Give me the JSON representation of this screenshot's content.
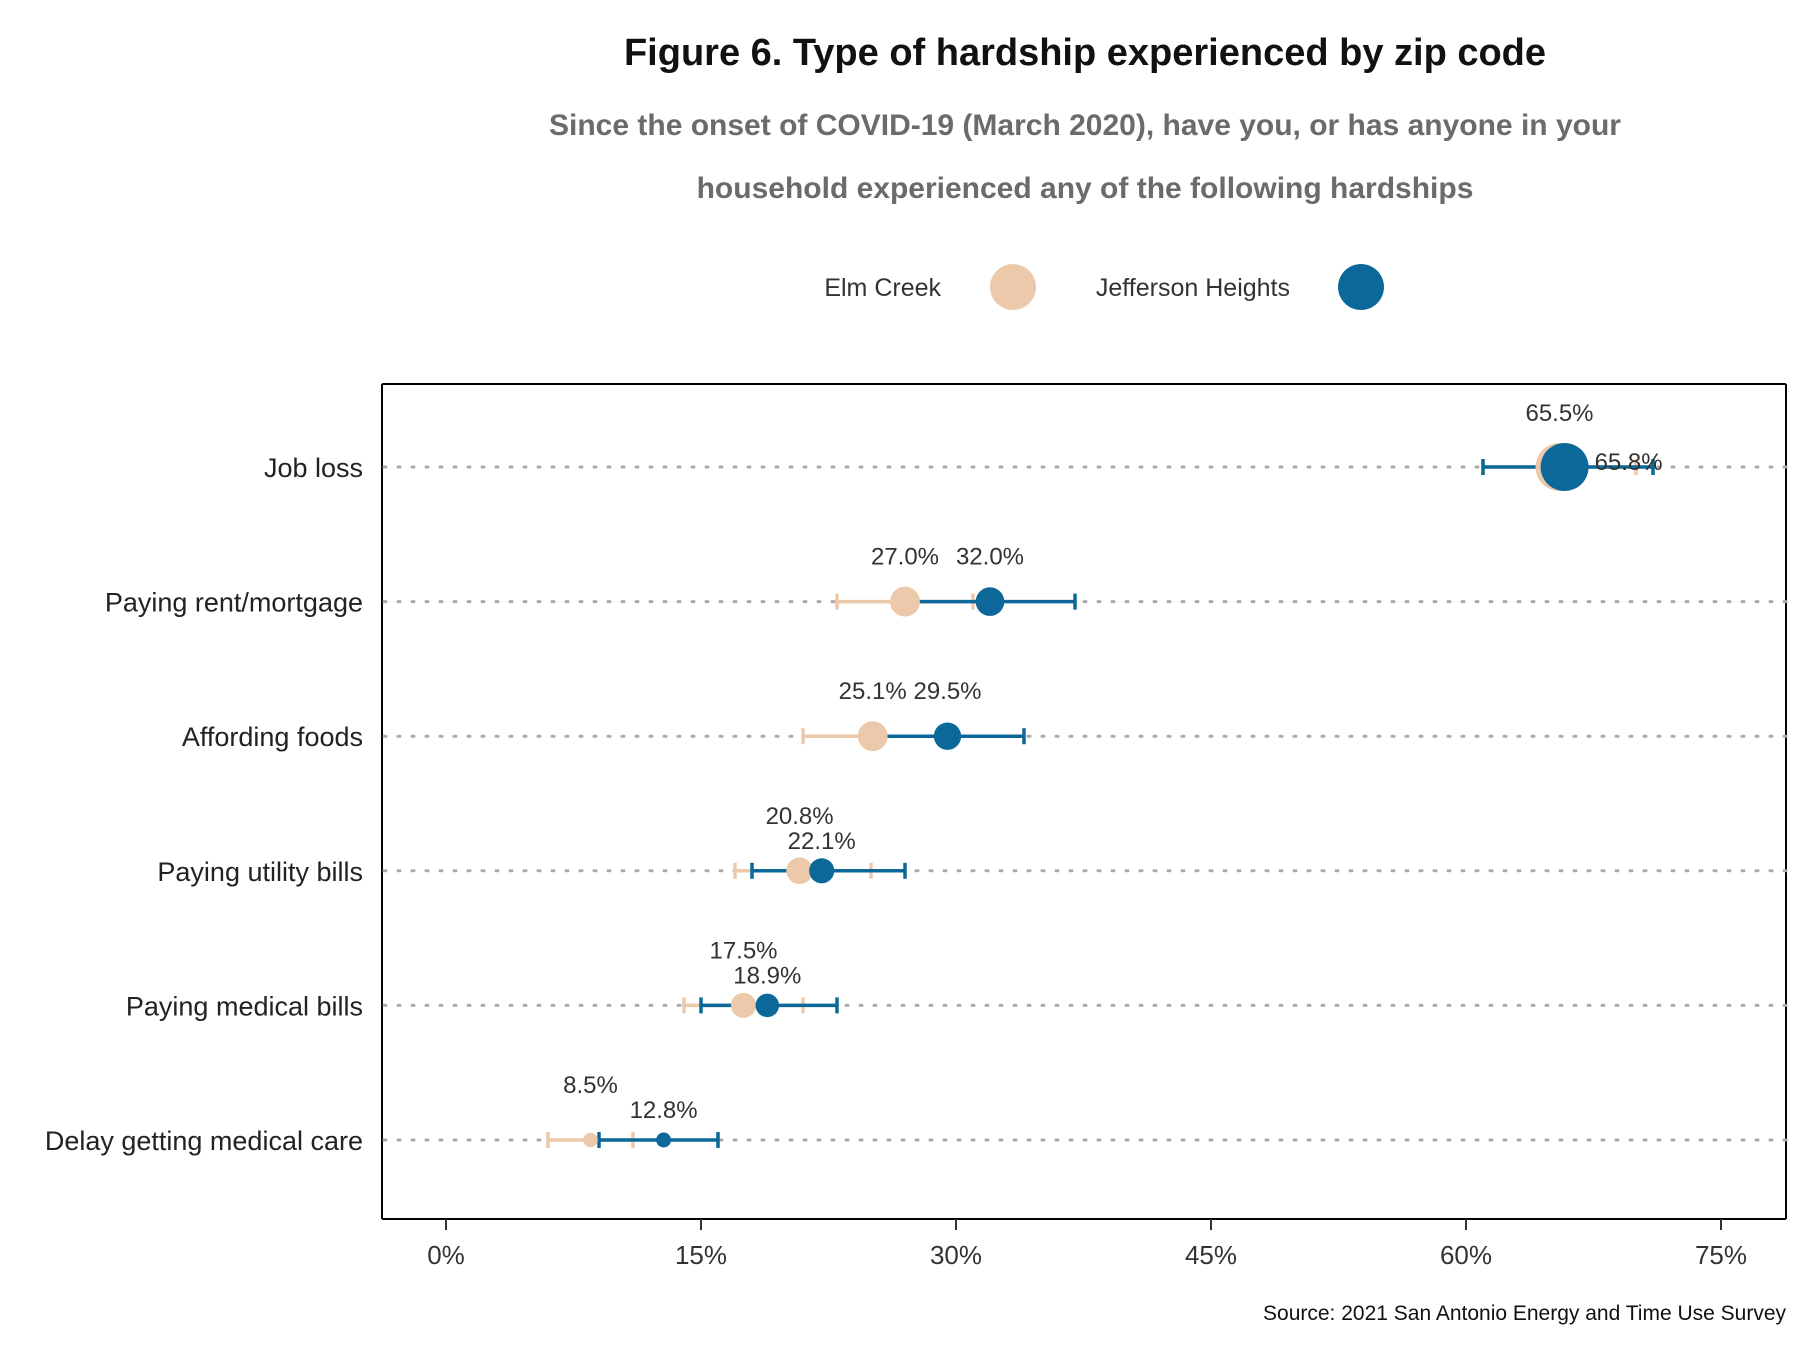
{
  "chart_data": {
    "type": "scatter",
    "title": "Figure 6. Type of hardship experienced by zip code",
    "subtitle_line1": "Since the onset of COVID-19 (March 2020), have you, or has anyone in your",
    "subtitle_line2": "household experienced any of the following hardships",
    "source": "Source: 2021 San Antonio Energy and Time Use Survey",
    "legend_position": "top-center",
    "categories": [
      "Job loss",
      "Paying rent/mortgage",
      "Affording foods",
      "Paying utility bills",
      "Paying medical bills",
      "Delay getting medical care"
    ],
    "x_range": [
      0,
      75
    ],
    "x_ticks": [
      0,
      15,
      30,
      45,
      60,
      75
    ],
    "x_tick_labels": [
      "0%",
      "15%",
      "30%",
      "45%",
      "60%",
      "75%"
    ],
    "series": [
      {
        "name": "Elm Creek",
        "color": "#ecc9aa",
        "values": [
          65.5,
          27.0,
          25.1,
          20.8,
          17.5,
          8.5
        ],
        "labels": [
          "65.5%",
          "27.0%",
          "25.1%",
          "20.8%",
          "17.5%",
          "8.5%"
        ],
        "ci_low": [
          61,
          23,
          21,
          17,
          14,
          6
        ],
        "ci_high": [
          70,
          31,
          29,
          25,
          21,
          11
        ]
      },
      {
        "name": "Jefferson Heights",
        "color": "#0b6898",
        "values": [
          65.8,
          32.0,
          29.5,
          22.1,
          18.9,
          12.8
        ],
        "labels": [
          "65.8%",
          "32.0%",
          "29.5%",
          "22.1%",
          "18.9%",
          "12.8%"
        ],
        "ci_low": [
          61,
          27,
          25,
          18,
          15,
          9
        ],
        "ci_high": [
          71,
          37,
          34,
          27,
          23,
          16
        ]
      }
    ],
    "point_sizes": [
      [
        3000,
        3000
      ],
      [
        900,
        800
      ],
      [
        900,
        700
      ],
      [
        650,
        550
      ],
      [
        550,
        450
      ],
      [
        80,
        90
      ]
    ]
  }
}
